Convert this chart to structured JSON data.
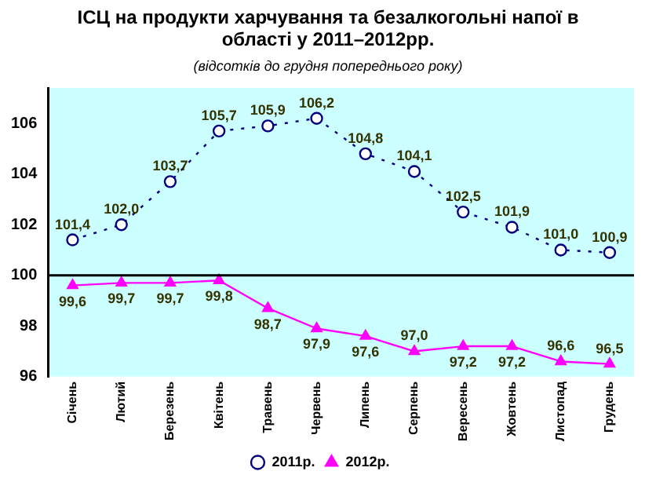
{
  "chart_data": {
    "type": "line",
    "title": "ІСЦ на продукти харчування та безалкогольні напої в області у 2011–2012рр.",
    "subtitle": "(відсотків до грудня попереднього року)",
    "categories": [
      "Січень",
      "Лютий",
      "Березень",
      "Квітень",
      "Травень",
      "Червень",
      "Липень",
      "Серпень",
      "Вересень",
      "Жовтень",
      "Листопад",
      "Грудень"
    ],
    "series": [
      {
        "name": "2011р.",
        "color": "#000080",
        "marker": "circle",
        "line_style": "dotted",
        "values": [
          101.4,
          102.0,
          103.7,
          105.7,
          105.9,
          106.2,
          104.8,
          104.1,
          102.5,
          101.9,
          101.0,
          100.9
        ],
        "value_labels": [
          "101,4",
          "102,0",
          "103,7",
          "105,7",
          "105,9",
          "106,2",
          "104,8",
          "104,1",
          "102,5",
          "101,9",
          "101,0",
          "100,9"
        ]
      },
      {
        "name": "2012р.",
        "color": "#ff00ff",
        "marker": "triangle",
        "line_style": "solid",
        "values": [
          99.6,
          99.7,
          99.7,
          99.8,
          98.7,
          97.9,
          97.6,
          97.0,
          97.2,
          97.2,
          96.6,
          96.5
        ],
        "value_labels": [
          "99,6",
          "99,7",
          "99,7",
          "99,8",
          "98,7",
          "97,9",
          "97,6",
          "97,0",
          "97,2",
          "97,2",
          "96,6",
          "96,5"
        ]
      }
    ],
    "ylim": [
      96,
      107.4
    ],
    "yticks": [
      96,
      98,
      100,
      102,
      104,
      106
    ],
    "ref_lines": [
      {
        "axis": "y",
        "value": 100,
        "color": "#000000"
      }
    ],
    "grid": false,
    "legend": "bottom"
  }
}
